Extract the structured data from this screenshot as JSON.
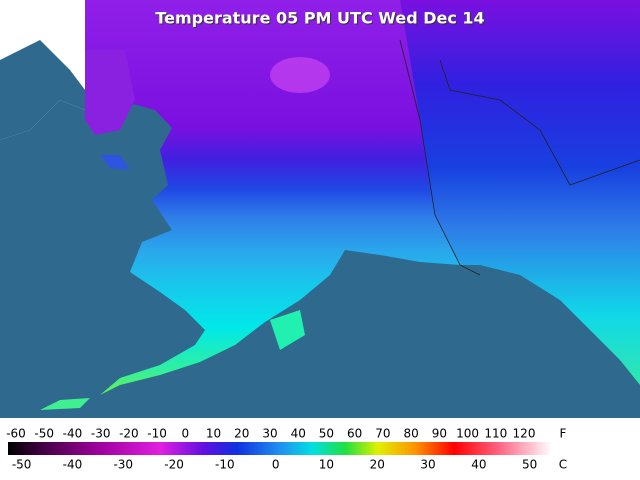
{
  "title": "Temperature 05 PM UTC Wed Dec 14",
  "legend": {
    "fahrenheit": {
      "unit": "F",
      "ticks": [
        -60,
        -50,
        -40,
        -30,
        -20,
        -10,
        0,
        10,
        20,
        30,
        40,
        50,
        60,
        70,
        80,
        90,
        100,
        110,
        120
      ]
    },
    "celsius": {
      "unit": "C",
      "ticks": [
        -50,
        -40,
        -30,
        -20,
        -10,
        0,
        10,
        20,
        30,
        40,
        50
      ]
    }
  }
}
